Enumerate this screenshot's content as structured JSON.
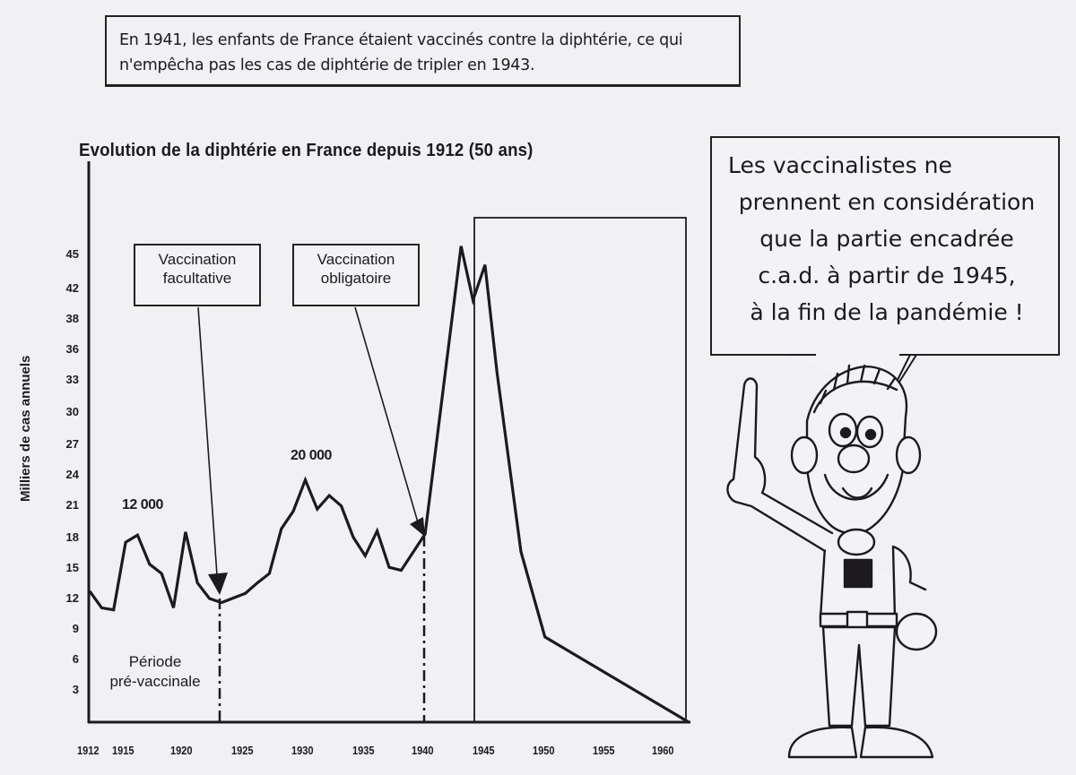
{
  "top_note": {
    "line1": "En 1941, les enfants de France étaient vaccinés contre la diphtérie, ce qui",
    "line2": "n'empêcha pas les cas de diphtérie de tripler en 1943."
  },
  "speech_bubble": {
    "lines": [
      "Les vaccinalistes ne",
      "prennent en considération",
      "que la partie encadrée",
      "c.a.d. à partir de 1945,",
      "à la fin de la pandémie !"
    ]
  },
  "character": {
    "label": "cartoon-boy-pointing-up"
  },
  "chart_data": {
    "type": "line",
    "title": "Evolution de la diphtérie en France depuis 1912 (50 ans)",
    "xlabel": "",
    "ylabel": "Milliers de cas annuels",
    "x_ticks": [
      "1912",
      "1915",
      "1920",
      "1925",
      "1930",
      "1935",
      "1940",
      "1945",
      "1950",
      "1955",
      "1960"
    ],
    "y_ticks": [
      "45",
      "42",
      "38",
      "36",
      "33",
      "30",
      "27",
      "24",
      "21",
      "18",
      "15",
      "12",
      "9",
      "6",
      "3"
    ],
    "xlim": [
      1912,
      1962
    ],
    "ylim": [
      0,
      47
    ],
    "grid": false,
    "legend": null,
    "series": [
      {
        "name": "Milliers de cas annuels",
        "x": [
          1912,
          1913,
          1914,
          1915,
          1916,
          1917,
          1918,
          1919,
          1920,
          1921,
          1922,
          1923,
          1925,
          1926,
          1927,
          1928,
          1929,
          1930,
          1931,
          1932,
          1933,
          1934,
          1935,
          1936,
          1937,
          1938,
          1940,
          1943,
          1944,
          1945,
          1946,
          1948,
          1950,
          1962
        ],
        "values": [
          12.6,
          11,
          10.8,
          17.3,
          18,
          15.2,
          14.3,
          11,
          18.3,
          13.4,
          11.9,
          11.5,
          12.4,
          13.4,
          14.3,
          18.6,
          20.3,
          23.3,
          20.5,
          21.8,
          20.8,
          17.8,
          16,
          18.4,
          14.9,
          14.6,
          18.1,
          45.8,
          40.6,
          44,
          33.7,
          16.4,
          8.2,
          0
        ]
      }
    ],
    "annotations": [
      {
        "text": "12 000",
        "near_year": 1916
      },
      {
        "text": "20 000",
        "near_year": 1930
      },
      {
        "text": "Vaccination facultative",
        "arrow_to_year": 1923
      },
      {
        "text": "Vaccination obligatoire",
        "arrow_to_year": 1940
      },
      {
        "text": "Période pré-vaccinale",
        "region": [
          1912,
          1923
        ]
      }
    ],
    "highlight_box": {
      "from_year": 1945,
      "to_year": 1962
    },
    "vlines": [
      {
        "year": 1923,
        "style": "dash-dot"
      },
      {
        "year": 1940,
        "style": "dash-dot"
      }
    ]
  },
  "labels": {
    "anno_12000": "12 000",
    "anno_20000": "20 000",
    "callout_facultative_1": "Vaccination",
    "callout_facultative_2": "facultative",
    "callout_obligatoire_1": "Vaccination",
    "callout_obligatoire_2": "obligatoire",
    "period_1": "Période",
    "period_2": "pré-vaccinale"
  }
}
